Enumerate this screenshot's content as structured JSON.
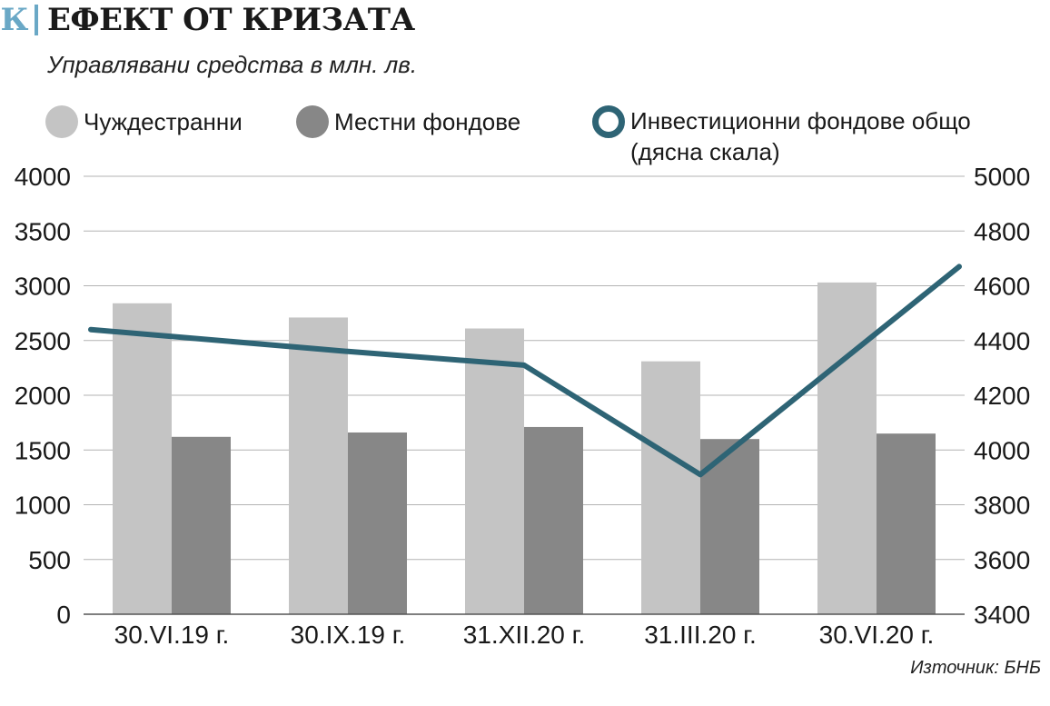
{
  "header": {
    "logo_letter": "К",
    "title": "ЕФЕКТ ОТ КРИЗАТА",
    "subtitle": "Управлявани средства в млн. лв."
  },
  "legend": {
    "items": [
      {
        "label": "Чуждестранни",
        "color": "#c4c4c4",
        "style": "filled-circle"
      },
      {
        "label": "Местни фондове",
        "color": "#878787",
        "style": "filled-circle"
      },
      {
        "label": "Инвестиционни фондове общо",
        "label2": "(дясна скала)",
        "color": "#2e6475",
        "style": "ring"
      }
    ]
  },
  "source": "Източник: БНБ",
  "colors": {
    "foreign_bar": "#c4c4c4",
    "local_bar": "#878787",
    "line": "#2e6475",
    "grid": "#b3b3b3",
    "axis": "#555555"
  },
  "chart_data": {
    "type": "bar",
    "categories": [
      "30.VI.19 г.",
      "30.IX.19 г.",
      "31.XII.20 г.",
      "31.III.20 г.",
      "30.VI.20 г."
    ],
    "series": [
      {
        "name": "Чуждестранни",
        "type": "bar",
        "axis": "left",
        "values": [
          2840,
          2710,
          2610,
          2310,
          3030
        ]
      },
      {
        "name": "Местни фондове",
        "type": "bar",
        "axis": "left",
        "values": [
          1620,
          1660,
          1710,
          1600,
          1650
        ]
      },
      {
        "name": "Инвестиционни фондове общо",
        "type": "line",
        "axis": "right",
        "values": [
          4440,
          4360,
          4310,
          3910,
          4670
        ]
      }
    ],
    "left_axis": {
      "min": 0,
      "max": 4000,
      "step": 500,
      "ticks": [
        "0",
        "500",
        "1000",
        "1500",
        "2000",
        "2500",
        "3000",
        "3500",
        "4000"
      ]
    },
    "right_axis": {
      "min": 3400,
      "max": 5000,
      "step": 200,
      "ticks": [
        "3400",
        "3600",
        "3800",
        "4000",
        "4200",
        "4400",
        "4600",
        "4800",
        "5000"
      ]
    },
    "grid": true,
    "legend_position": "top"
  }
}
